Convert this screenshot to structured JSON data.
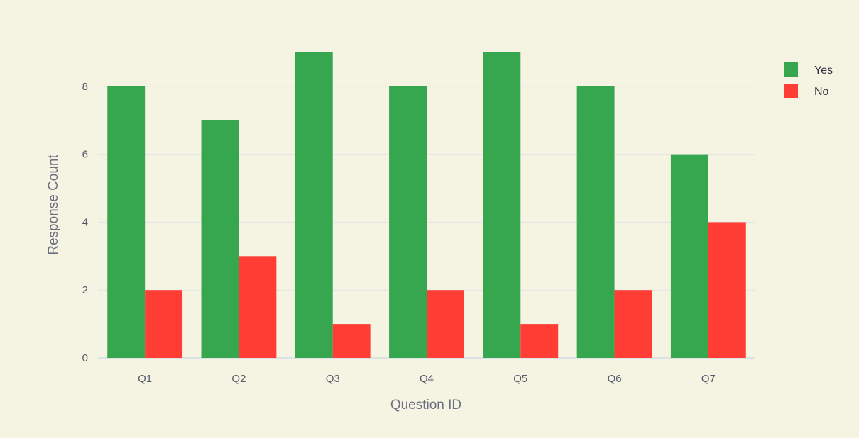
{
  "chart_data": {
    "type": "bar",
    "barmode": "group",
    "categories": [
      "Q1",
      "Q2",
      "Q3",
      "Q4",
      "Q5",
      "Q6",
      "Q7"
    ],
    "series": [
      {
        "name": "Yes",
        "color": "#36a64f",
        "values": [
          8,
          7,
          9,
          8,
          9,
          8,
          6
        ]
      },
      {
        "name": "No",
        "color": "#ff3d35",
        "values": [
          2,
          3,
          1,
          2,
          1,
          2,
          4
        ]
      }
    ],
    "title": "",
    "xlabel": "Question ID",
    "ylabel": "Response Count",
    "ylim": [
      0,
      9.5
    ],
    "yticks": [
      0,
      2,
      4,
      6,
      8
    ],
    "grid": true,
    "legend_position": "top-right",
    "background_color": "#f5f3e1"
  }
}
